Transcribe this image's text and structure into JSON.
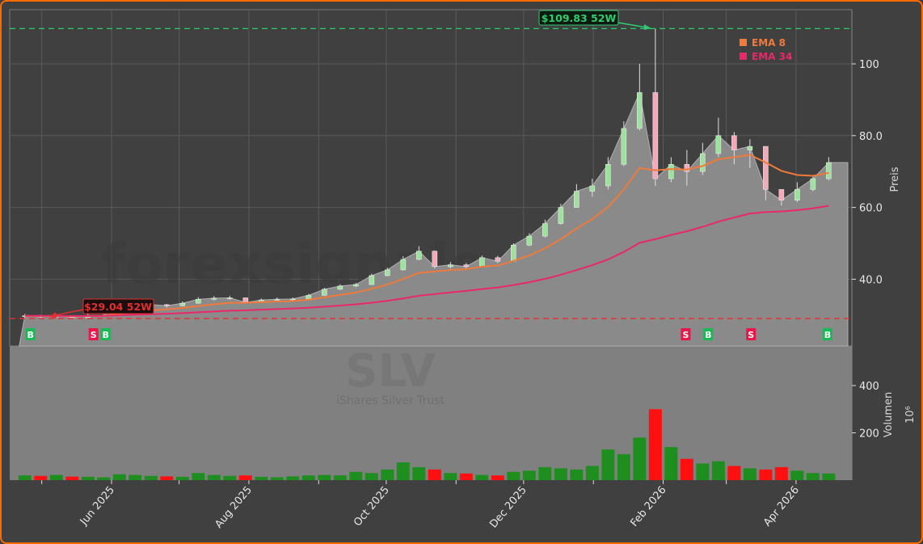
{
  "chart_data": [
    {
      "type": "candlestick",
      "panel": "price",
      "ylabel": "Preis",
      "ylim": [
        21.4,
        115
      ],
      "yticks": [
        "40.0",
        "60.0",
        "80.0",
        "100"
      ],
      "ytick_values": [
        40,
        60,
        80,
        100
      ],
      "grid": true,
      "watermark": "forexsignale.trade",
      "dates": [
        "2025-04-21",
        "2025-04-28",
        "2025-05-05",
        "2025-05-12",
        "2025-05-19",
        "2025-05-26",
        "2025-06-02",
        "2025-06-09",
        "2025-06-16",
        "2025-06-23",
        "2025-06-30",
        "2025-07-07",
        "2025-07-14",
        "2025-07-21",
        "2025-07-28",
        "2025-08-04",
        "2025-08-11",
        "2025-08-18",
        "2025-08-25",
        "2025-09-01",
        "2025-09-08",
        "2025-09-15",
        "2025-09-22",
        "2025-09-29",
        "2025-10-06",
        "2025-10-13",
        "2025-10-20",
        "2025-10-27",
        "2025-11-03",
        "2025-11-10",
        "2025-11-17",
        "2025-11-24",
        "2025-12-01",
        "2025-12-08",
        "2025-12-15",
        "2025-12-22",
        "2025-12-29",
        "2026-01-05",
        "2026-01-12",
        "2026-01-19",
        "2026-01-26",
        "2026-02-02",
        "2026-02-09",
        "2026-02-16",
        "2026-02-23",
        "2026-03-02",
        "2026-03-09",
        "2026-03-16",
        "2026-03-23",
        "2026-03-30",
        "2026-04-06",
        "2026-04-13"
      ],
      "close": [
        29.8,
        29.5,
        29.9,
        29.3,
        29.9,
        29.9,
        32.3,
        32.8,
        32.9,
        32.6,
        33.3,
        34.4,
        34.7,
        34.8,
        33.5,
        34.2,
        34.4,
        34.5,
        35.5,
        37.2,
        38.1,
        38.5,
        41.0,
        42.6,
        45.5,
        47.8,
        43.5,
        44.0,
        43.5,
        46.0,
        45.0,
        49.5,
        52.0,
        55.5,
        60.0,
        64.5,
        66.0,
        72.0,
        82.0,
        92.0,
        68.0,
        72.0,
        70.0,
        75.0,
        80.0,
        76.0,
        77.0,
        65.0,
        62.0,
        65.0,
        68.0,
        72.5
      ],
      "high": [
        30.3,
        30.1,
        30.2,
        29.9,
        30.3,
        30.4,
        32.8,
        33.4,
        33.3,
        33.1,
        33.8,
        35.0,
        35.3,
        35.4,
        34.9,
        34.6,
        34.9,
        34.9,
        35.9,
        37.6,
        38.6,
        39.0,
        41.5,
        43.2,
        46.4,
        49.2,
        48.0,
        44.8,
        44.5,
        46.6,
        46.5,
        50.0,
        52.8,
        56.6,
        61.0,
        66.5,
        68.0,
        74.0,
        84.0,
        100.0,
        109.83,
        74.0,
        76.0,
        78.0,
        85.0,
        81.0,
        79.0,
        75.0,
        65.0,
        67.0,
        69.0,
        74.0
      ],
      "low": [
        29.2,
        29.1,
        29.04,
        29.1,
        29.2,
        29.5,
        29.8,
        32.2,
        32.3,
        32.1,
        32.4,
        33.2,
        34.1,
        34.3,
        33.2,
        33.4,
        33.9,
        34.1,
        34.3,
        35.4,
        37.0,
        37.8,
        38.4,
        40.8,
        42.4,
        45.3,
        43.0,
        43.0,
        43.0,
        43.4,
        44.5,
        45.0,
        49.2,
        51.6,
        55.2,
        60.0,
        63.0,
        65.0,
        71.5,
        81.5,
        66.0,
        67.0,
        66.0,
        69.0,
        74.0,
        72.0,
        71.0,
        62.0,
        60.5,
        61.5,
        64.5,
        67.5
      ]
    },
    {
      "type": "bar",
      "panel": "volume",
      "ylabel": "Volumen",
      "yunit": "10⁶",
      "ylim": [
        0,
        566
      ],
      "yticks": [
        "200",
        "400"
      ],
      "ytick_values": [
        200,
        400
      ],
      "watermark": "SLV",
      "watermark_sub": "iShares Silver Trust",
      "values": [
        20,
        18,
        22,
        15,
        14,
        12,
        25,
        22,
        18,
        16,
        14,
        30,
        22,
        18,
        20,
        14,
        12,
        16,
        20,
        22,
        20,
        35,
        30,
        45,
        75,
        55,
        45,
        30,
        28,
        22,
        20,
        35,
        40,
        55,
        50,
        45,
        60,
        130,
        110,
        180,
        300,
        140,
        90,
        70,
        80,
        60,
        50,
        45,
        55,
        40,
        30,
        28
      ],
      "up_color": "#1e8e1e",
      "down_color": "#ff1010"
    }
  ],
  "xaxis": {
    "ticks": [
      "Jun 2025",
      "Aug 2025",
      "Oct 2025",
      "Dec 2025",
      "Feb 2026",
      "Apr 2026"
    ],
    "tick_dates": [
      "2025-06-01",
      "2025-08-01",
      "2025-10-01",
      "2025-12-01",
      "2026-02-01",
      "2026-04-01"
    ],
    "minor_dates": [
      "2025-05-01",
      "2025-07-01",
      "2025-09-01",
      "2025-11-01",
      "2026-01-01",
      "2026-03-01"
    ]
  },
  "legend": {
    "placement": "top-right",
    "items": [
      {
        "label": "EMA 8",
        "color": "#f07a3a",
        "period": 8
      },
      {
        "label": "EMA 34",
        "color": "#e8286a",
        "period": 34
      }
    ]
  },
  "annotations": {
    "high": {
      "label": "$109.83 52W",
      "value": 109.83,
      "date": "2026-01-29",
      "color": "#2ecc71"
    },
    "low": {
      "label": "$29.04 52W",
      "value": 29.04,
      "date": "2025-05-06",
      "color": "#e03030"
    }
  },
  "signals": [
    {
      "type": "B",
      "date": "2025-04-26"
    },
    {
      "type": "S",
      "date": "2025-05-24"
    },
    {
      "type": "B",
      "date": "2025-05-27"
    },
    {
      "type": "S",
      "date": "2026-02-11"
    },
    {
      "type": "B",
      "date": "2026-02-21"
    },
    {
      "type": "S",
      "date": "2026-03-12"
    },
    {
      "type": "B",
      "date": "2026-04-15"
    }
  ],
  "colors": {
    "buy": "#19b955",
    "sell": "#e8174a",
    "frame": "#ff6a00",
    "area": "#8a8a8a"
  }
}
